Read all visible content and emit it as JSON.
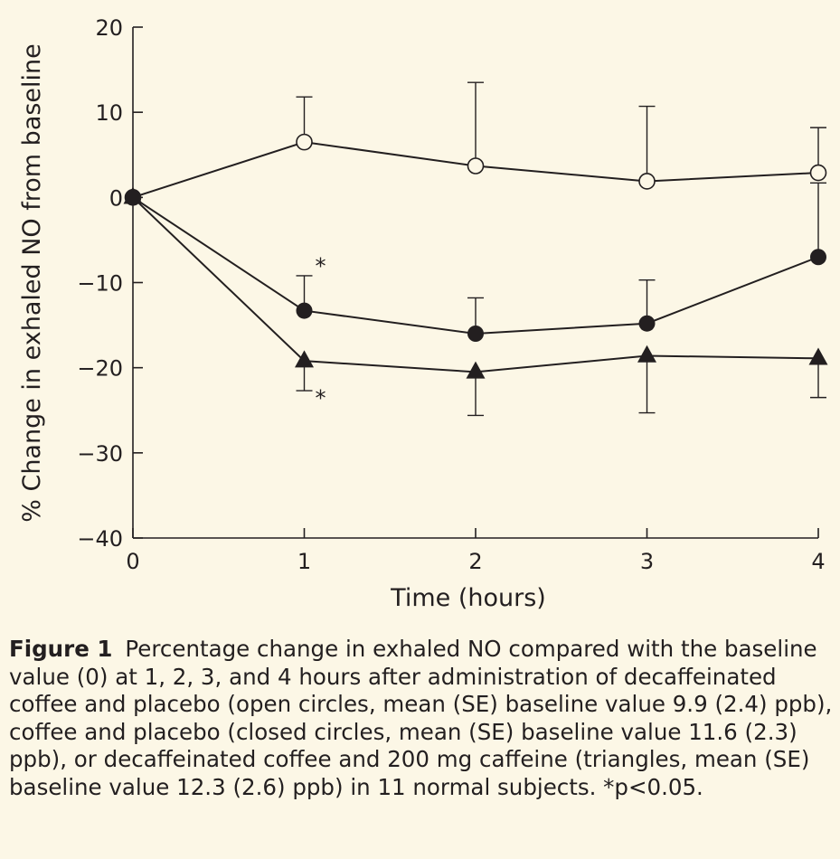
{
  "chart_data": {
    "type": "line",
    "x": [
      0,
      1,
      2,
      3,
      4
    ],
    "xlabel": "Time (hours)",
    "ylabel": "% Change in exhaled NO from baseline",
    "xlim": [
      0,
      4
    ],
    "ylim": [
      -40,
      20
    ],
    "xticks": [
      "0",
      "1",
      "2",
      "3",
      "4"
    ],
    "yticks": [
      "20",
      "10",
      "0",
      "−10",
      "−20",
      "−30",
      "−40"
    ],
    "grid": false,
    "series": [
      {
        "marker": "open-circle",
        "values": [
          0,
          6.5,
          3.7,
          1.9,
          2.9
        ],
        "error_upper": [
          0,
          11.8,
          13.5,
          10.7,
          8.2
        ],
        "error_lower": [
          null,
          null,
          null,
          null,
          null
        ]
      },
      {
        "marker": "closed-circle",
        "values": [
          0,
          -13.3,
          -16.0,
          -14.8,
          -7.0
        ],
        "error_upper": [
          0,
          -9.2,
          -11.8,
          -9.7,
          1.7
        ],
        "error_lower": [
          null,
          null,
          null,
          null,
          null
        ]
      },
      {
        "marker": "triangle",
        "values": [
          0,
          -19.2,
          -20.5,
          -18.6,
          -18.9
        ],
        "error_upper": [
          null,
          null,
          null,
          null,
          null
        ],
        "error_lower": [
          0,
          -22.7,
          -25.6,
          -25.3,
          -23.5
        ]
      }
    ],
    "annotations": [
      {
        "text": "*",
        "x": 1,
        "y": -8.3
      },
      {
        "text": "*",
        "x": 1,
        "y": -23.8
      }
    ]
  },
  "caption": {
    "label": "Figure 1",
    "text": "Percentage change in exhaled NO compared with the baseline value (0) at 1, 2, 3, and 4 hours after administration of decaffeinated coffee and placebo (open circles, mean (SE) baseline value 9.9 (2.4) ppb), coffee and placebo (closed circles, mean (SE) baseline value 11.6 (2.3) ppb), or decaffeinated coffee and 200 mg caffeine (triangles, mean (SE) baseline value 12.3 (2.6) ppb) in 11 normal subjects. *p<0.05."
  }
}
